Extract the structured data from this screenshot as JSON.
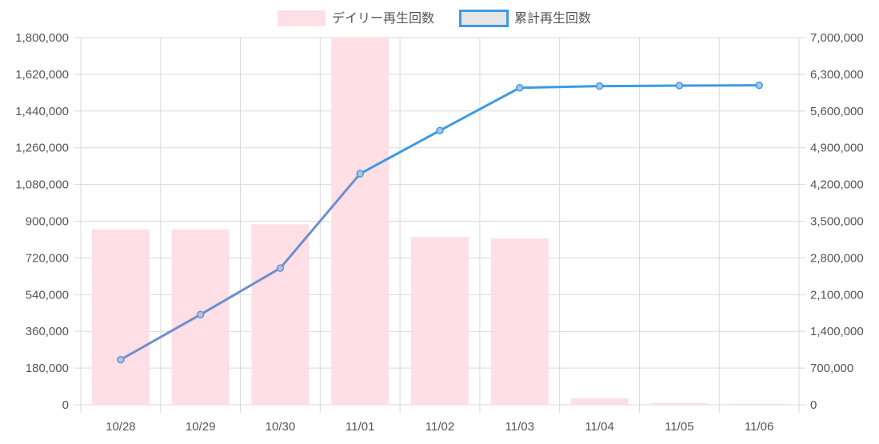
{
  "colors": {
    "bar_fill": "#ffdfe6",
    "line": "#3d9ae5",
    "line_early": "#6d8fcc",
    "point_fill": "#a8c6e6",
    "grid": "#d9d9d9",
    "tick_text": "#555555",
    "legend_text": "#555555",
    "cumulative_box_fill": "#e6e6e6"
  },
  "chart_data": {
    "type": "bar",
    "categories": [
      "10/28",
      "10/29",
      "10/30",
      "11/01",
      "11/02",
      "11/03",
      "11/04",
      "11/05",
      "11/06"
    ],
    "series": [
      {
        "name": "デイリー再生回数",
        "type": "bar",
        "axis": "left",
        "values": [
          860000,
          860000,
          885000,
          1800000,
          823000,
          815000,
          32000,
          10000,
          5000
        ]
      },
      {
        "name": "累計再生回数",
        "type": "line",
        "axis": "right",
        "values": [
          860000,
          1720000,
          2605000,
          4405000,
          5228000,
          6043000,
          6075000,
          6085000,
          6090000
        ]
      }
    ],
    "y_left": {
      "range": [
        0,
        1800000
      ],
      "ticks": [
        "1,800,000",
        "1,620,000",
        "1,440,000",
        "1,260,000",
        "1,080,000",
        "900,000",
        "720,000",
        "540,000",
        "360,000",
        "180,000",
        "0"
      ]
    },
    "y_right": {
      "range": [
        0,
        7000000
      ],
      "ticks": [
        "7,000,000",
        "6,300,000",
        "5,600,000",
        "4,900,000",
        "4,200,000",
        "3,500,000",
        "2,800,000",
        "2,100,000",
        "1,400,000",
        "700,000",
        "0"
      ]
    },
    "legend_position": "top-center",
    "grid": true
  }
}
